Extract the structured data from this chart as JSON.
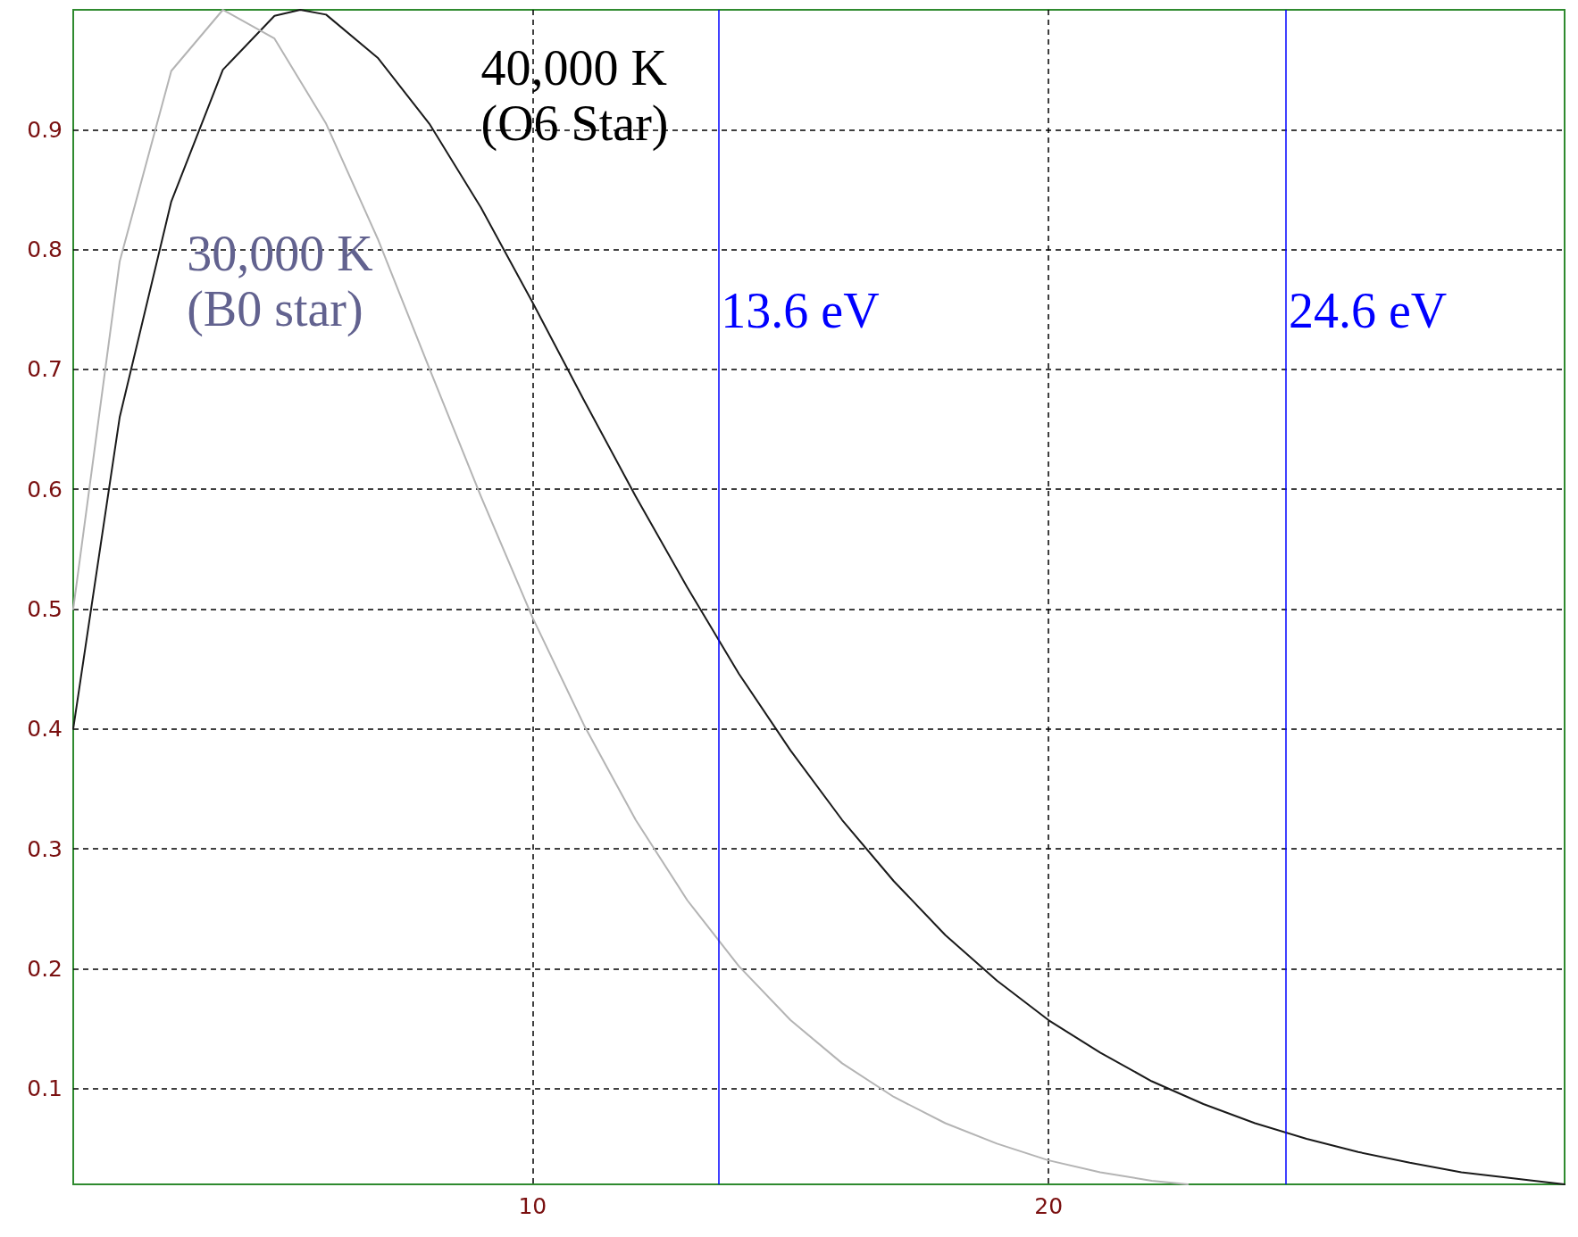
{
  "chart_data": {
    "type": "line",
    "series": [
      {
        "name": "40,000 K\n(O6 Star)",
        "color": "#1a1a1a",
        "x": [
          1.1,
          2,
          3,
          4,
          5,
          5.5,
          6,
          7,
          8,
          9,
          10,
          11,
          12,
          13,
          14,
          15,
          16,
          17,
          18,
          19,
          20,
          21,
          22,
          23,
          24,
          25,
          26,
          27,
          28,
          29,
          30
        ],
        "values": [
          0.4,
          0.66,
          0.84,
          0.95,
          0.995,
          1.0,
          0.996,
          0.96,
          0.905,
          0.835,
          0.756,
          0.674,
          0.594,
          0.518,
          0.446,
          0.382,
          0.324,
          0.273,
          0.228,
          0.19,
          0.157,
          0.13,
          0.106,
          0.087,
          0.071,
          0.058,
          0.047,
          0.038,
          0.03,
          0.025,
          0.02
        ]
      },
      {
        "name": "30,000 K\n(B0 star)",
        "color": "#b4b4b4",
        "x": [
          1.1,
          2,
          3,
          4,
          5,
          6,
          7,
          8,
          9,
          10,
          11,
          12,
          13,
          14,
          15,
          16,
          17,
          18,
          19,
          20,
          21,
          22,
          22.7
        ],
        "values": [
          0.5,
          0.79,
          0.949,
          1.0,
          0.976,
          0.905,
          0.809,
          0.701,
          0.594,
          0.493,
          0.403,
          0.324,
          0.257,
          0.202,
          0.157,
          0.121,
          0.093,
          0.071,
          0.054,
          0.04,
          0.03,
          0.023,
          0.02
        ]
      }
    ],
    "xlim": [
      1.1,
      30
    ],
    "xticks": [
      10,
      20
    ],
    "ylim": [
      0.02,
      1.0
    ],
    "yticks": [
      0.1,
      0.2,
      0.3,
      0.4,
      0.5,
      0.6,
      0.7,
      0.8,
      0.9
    ],
    "ref_lines": [
      {
        "axis": "x",
        "value": 13.6,
        "label": "13.6 eV",
        "color": "#0000ff"
      },
      {
        "axis": "x",
        "value": 24.6,
        "label": "24.6 eV",
        "color": "#0000ff"
      }
    ],
    "grid": true,
    "legend": false,
    "marker": "none",
    "line_style": "solid"
  }
}
